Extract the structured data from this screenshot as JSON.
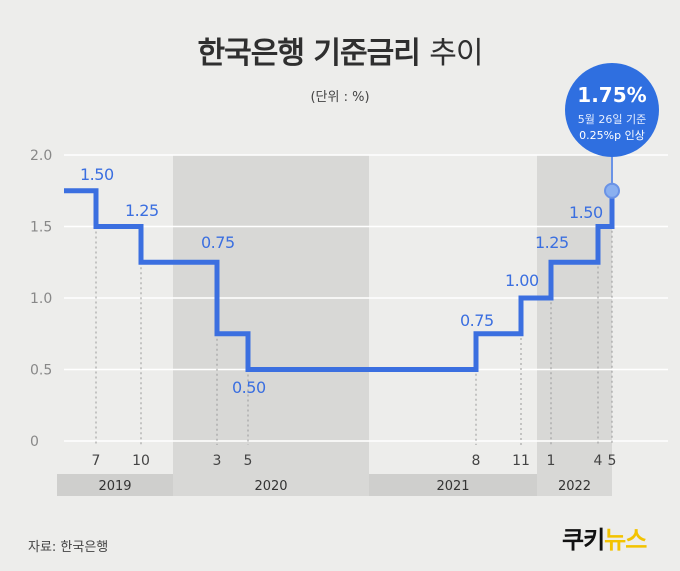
{
  "title_bold": "한국은행 기준금리",
  "title_light": "추이",
  "unit_label": "(단위 : %)",
  "source": "자료: 한국은행",
  "logo": {
    "part1": "쿠키",
    "part2": "뉴스"
  },
  "callout": {
    "value": "1.75%",
    "line1": "5월 26일 기준",
    "line2": "0.25%p 인상"
  },
  "colors": {
    "line": "#3b6fe0",
    "callout": "#2f6fe0",
    "shade": "#d8d8d6",
    "year_band": "#cfcfcd"
  },
  "chart_data": {
    "type": "line",
    "step": true,
    "ylim": [
      0,
      2.0
    ],
    "y_ticks": [
      "0",
      "0.5",
      "1.0",
      "1.5",
      "2.0"
    ],
    "points": [
      {
        "t": 2019.0,
        "y": 1.75
      },
      {
        "t": 2019.55,
        "y": 1.5
      },
      {
        "t": 2019.8,
        "y": 1.25
      },
      {
        "t": 2020.2,
        "y": 0.75
      },
      {
        "t": 2020.37,
        "y": 0.5
      },
      {
        "t": 2021.6,
        "y": 0.75
      },
      {
        "t": 2021.87,
        "y": 1.0
      },
      {
        "t": 2022.02,
        "y": 1.25
      },
      {
        "t": 2022.28,
        "y": 1.5
      },
      {
        "t": 2022.38,
        "y": 1.75
      }
    ],
    "value_labels": [
      "1.50",
      "1.25",
      "0.75",
      "0.50",
      "0.75",
      "1.00",
      "1.25",
      "1.50"
    ],
    "month_labels": [
      "7",
      "10",
      "3",
      "5",
      "8",
      "11",
      "1",
      "4",
      "5"
    ],
    "years": [
      "2019",
      "2020",
      "2021",
      "2022"
    ]
  }
}
